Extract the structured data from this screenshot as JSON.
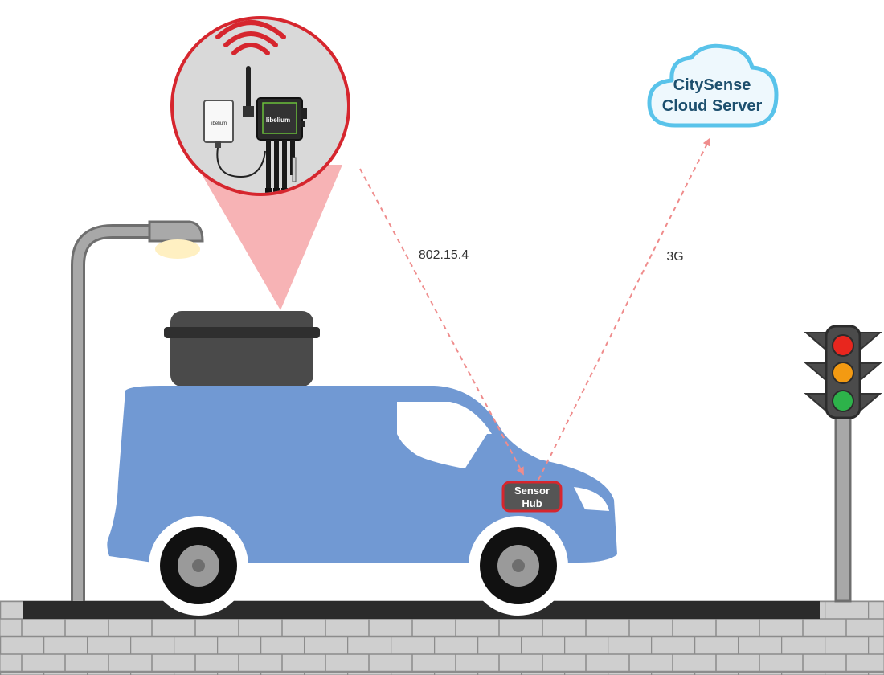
{
  "cloud": {
    "line1": "CitySense",
    "line2": "Cloud Server"
  },
  "links": {
    "radio_label": "802.15.4",
    "cellular_label": "3G"
  },
  "hub": {
    "line1": "Sensor",
    "line2": "Hub"
  },
  "device": {
    "brand_label": "libelium",
    "panel_label": "libelium"
  },
  "colors": {
    "van": "#7199d3",
    "accent_red": "#d6262e",
    "zoom_fill": "#f7b3b5",
    "arrow": "#ef8c8c",
    "cloud_stroke": "#59c3ea",
    "cloud_fill": "#eef8fd",
    "pavement": "#cfcfcf",
    "traffic_red": "#e8261e",
    "traffic_amber": "#f39a12",
    "traffic_green": "#2db34a"
  },
  "icons": [
    "wifi-icon",
    "cloud-icon",
    "street-lamp-icon",
    "traffic-light-icon",
    "van-icon",
    "sensor-box-icon"
  ]
}
